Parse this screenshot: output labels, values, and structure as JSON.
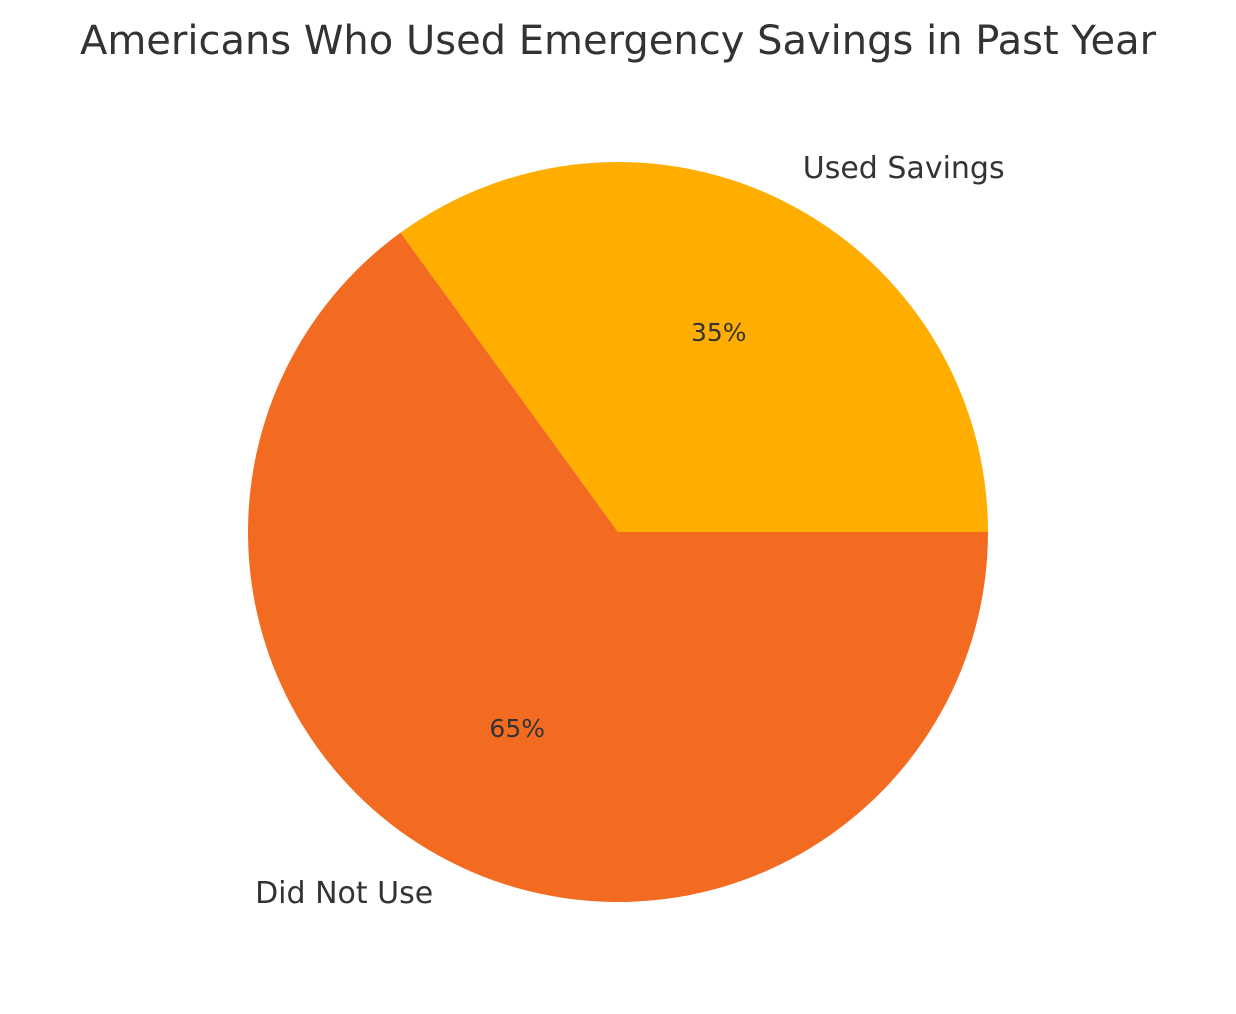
{
  "chart_data": {
    "type": "pie",
    "title": "Americans Who Used Emergency Savings in Past Year",
    "slices": [
      {
        "label": "Used Savings",
        "value": 35,
        "pct_label": "35%",
        "color": "#FFAE00"
      },
      {
        "label": "Did Not Use",
        "value": 65,
        "pct_label": "65%",
        "color": "#F26B21"
      }
    ],
    "start_angle_deg": 0,
    "direction": "counterclockwise",
    "legend": "none"
  }
}
